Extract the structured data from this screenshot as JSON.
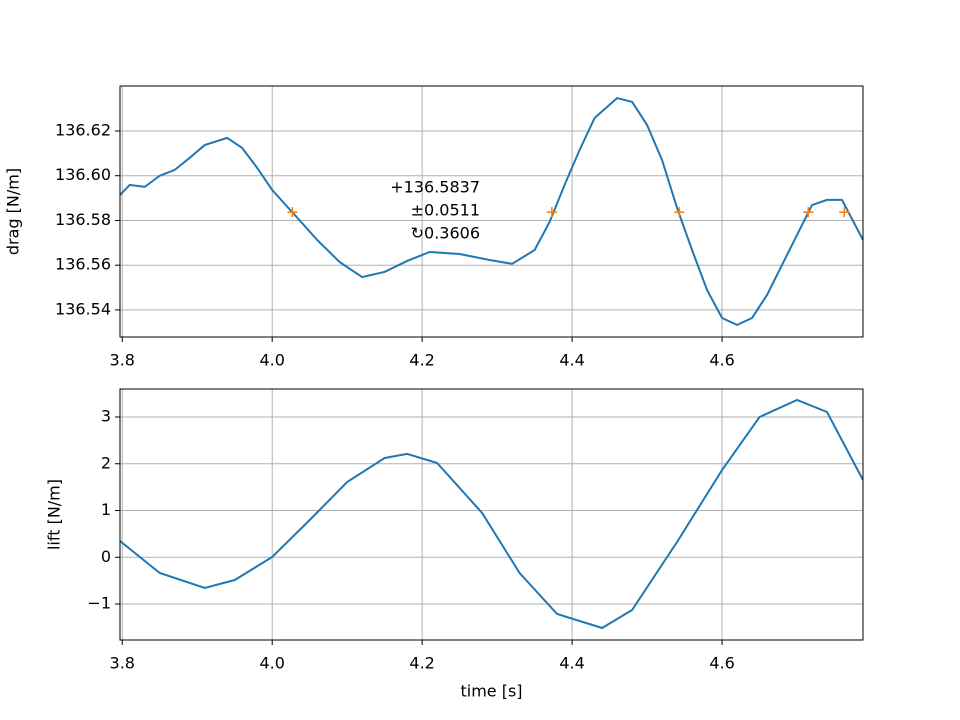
{
  "chart_data": [
    {
      "type": "line",
      "ylabel": "drag [N/m]",
      "x": [
        3.797,
        3.81,
        3.83,
        3.85,
        3.87,
        3.89,
        3.91,
        3.94,
        3.96,
        3.98,
        4.0,
        4.03,
        4.06,
        4.09,
        4.12,
        4.15,
        4.18,
        4.21,
        4.25,
        4.29,
        4.32,
        4.35,
        4.37,
        4.39,
        4.41,
        4.43,
        4.46,
        4.48,
        4.5,
        4.52,
        4.54,
        4.56,
        4.58,
        4.6,
        4.62,
        4.64,
        4.66,
        4.68,
        4.7,
        4.72,
        4.74,
        4.76,
        4.788
      ],
      "series": [
        {
          "color": "#1f77b4",
          "values": [
            136.5914,
            136.5959,
            136.595,
            136.6,
            136.6026,
            136.608,
            136.6137,
            136.6169,
            136.6124,
            136.6035,
            136.5936,
            136.5825,
            136.5713,
            136.5614,
            136.5547,
            136.557,
            136.5619,
            136.5659,
            136.565,
            136.5623,
            136.5606,
            136.5668,
            136.5793,
            136.5959,
            136.6115,
            136.6258,
            136.6347,
            136.633,
            136.6227,
            136.607,
            136.5856,
            136.5668,
            136.5489,
            136.5364,
            136.5333,
            136.5364,
            136.5467,
            136.5601,
            136.5735,
            136.5869,
            136.5892,
            136.5892,
            136.5713
          ]
        }
      ],
      "markers": {
        "color": "#ff7f0e",
        "x": [
          4.027,
          4.373,
          4.543,
          4.715,
          4.763
        ],
        "y": [
          136.5837,
          136.5837,
          136.5837,
          136.5837,
          136.5837
        ]
      },
      "annotation": [
        "+136.5837",
        "±0.0511",
        "↻0.3606"
      ],
      "xlim": [
        3.797,
        4.788
      ],
      "ylim": [
        136.5279,
        136.6401
      ],
      "xticks": [
        3.8,
        {
          "value": 4.0,
          "label": "4.0"
        },
        4.2,
        4.4,
        4.6
      ],
      "yticks": [
        136.54,
        136.56,
        136.58,
        {
          "value": 136.6,
          "label": "136.60"
        },
        136.62
      ],
      "grid": true
    },
    {
      "type": "line",
      "ylabel": "lift [N/m]",
      "xlabel": "time [s]",
      "x": [
        3.797,
        3.85,
        3.91,
        3.95,
        4.0,
        4.05,
        4.1,
        4.15,
        4.18,
        4.22,
        4.28,
        4.33,
        4.38,
        4.44,
        4.48,
        4.54,
        4.6,
        4.65,
        4.7,
        4.74,
        4.788
      ],
      "series": [
        {
          "color": "#1f77b4",
          "values": [
            0.348,
            -0.337,
            -0.658,
            -0.487,
            0.005,
            0.797,
            1.61,
            2.123,
            2.21,
            2.016,
            0.947,
            -0.337,
            -1.214,
            -1.513,
            -1.128,
            0.326,
            1.866,
            3.0,
            3.364,
            3.107,
            1.652
          ]
        }
      ],
      "xlim": [
        3.797,
        4.788
      ],
      "ylim": [
        -1.77,
        3.599
      ],
      "xticks": [
        3.8,
        {
          "value": 4.0,
          "label": "4.0"
        },
        4.2,
        4.4,
        4.6
      ],
      "yticks": [
        {
          "value": -1,
          "label": "−1"
        },
        0,
        1,
        2,
        3
      ],
      "grid": true
    }
  ]
}
